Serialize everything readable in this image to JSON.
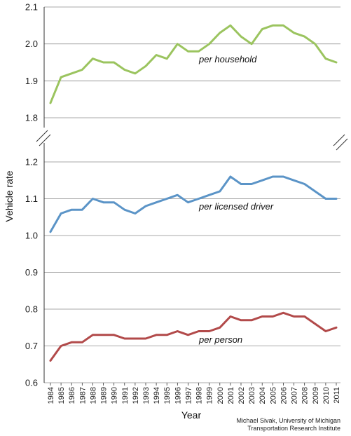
{
  "chart_data": {
    "type": "line",
    "xlabel": "Year",
    "ylabel": "Vehicle rate",
    "x": [
      1984,
      1985,
      1986,
      1987,
      1988,
      1989,
      1990,
      1991,
      1992,
      1993,
      1994,
      1995,
      1996,
      1997,
      1998,
      1999,
      2000,
      2001,
      2002,
      2003,
      2004,
      2005,
      2006,
      2007,
      2008,
      2009,
      2010,
      2011
    ],
    "x_tick_labels": [
      "1984",
      "1985",
      "1986",
      "1987",
      "1988",
      "1989",
      "1990",
      "1991",
      "1992",
      "1993",
      "1994",
      "1995",
      "1996",
      "1997",
      "1998",
      "1999",
      "2000",
      "2001",
      "2002",
      "2003",
      "2004",
      "2005",
      "2006",
      "2007",
      "2008",
      "2009",
      "2010",
      "2011"
    ],
    "y_axis_broken": true,
    "upper_ylim": [
      1.8,
      2.1
    ],
    "upper_ticks": [
      "1.8",
      "2.0",
      "2.1",
      "1.9"
    ],
    "upper_tick_values": [
      1.8,
      2.0,
      2.1,
      1.9
    ],
    "lower_ylim": [
      0.6,
      1.2
    ],
    "lower_ticks": [
      "0.6",
      "0.7",
      "0.8",
      "0.9",
      "1.0",
      "1.1",
      "1.2"
    ],
    "lower_tick_values": [
      0.6,
      0.7,
      0.8,
      0.9,
      1.0,
      1.1,
      1.2
    ],
    "grid": "horizontal",
    "series": [
      {
        "name": "per household",
        "color": "#9bc45f",
        "panel": "upper",
        "values": [
          1.84,
          1.91,
          1.92,
          1.93,
          1.96,
          1.95,
          1.95,
          1.93,
          1.92,
          1.94,
          1.97,
          1.96,
          2.0,
          1.98,
          1.98,
          2.0,
          2.03,
          2.05,
          2.02,
          2.0,
          2.04,
          2.05,
          2.05,
          2.03,
          2.02,
          2.0,
          1.96,
          1.95
        ]
      },
      {
        "name": "per licensed driver",
        "color": "#5b94c7",
        "panel": "lower",
        "values": [
          1.01,
          1.06,
          1.07,
          1.07,
          1.1,
          1.09,
          1.09,
          1.07,
          1.06,
          1.08,
          1.09,
          1.1,
          1.11,
          1.09,
          1.1,
          1.11,
          1.12,
          1.16,
          1.14,
          1.14,
          1.15,
          1.16,
          1.16,
          1.15,
          1.14,
          1.12,
          1.1,
          1.1
        ]
      },
      {
        "name": "per person",
        "color": "#b24a4a",
        "panel": "lower",
        "values": [
          0.66,
          0.7,
          0.71,
          0.71,
          0.73,
          0.73,
          0.73,
          0.72,
          0.72,
          0.72,
          0.73,
          0.73,
          0.74,
          0.73,
          0.74,
          0.74,
          0.75,
          0.78,
          0.77,
          0.77,
          0.78,
          0.78,
          0.79,
          0.78,
          0.78,
          0.76,
          0.74,
          0.75
        ]
      }
    ],
    "credit_lines": [
      "Michael Sivak, University of Michigan",
      "Transportation Research Institute"
    ]
  }
}
